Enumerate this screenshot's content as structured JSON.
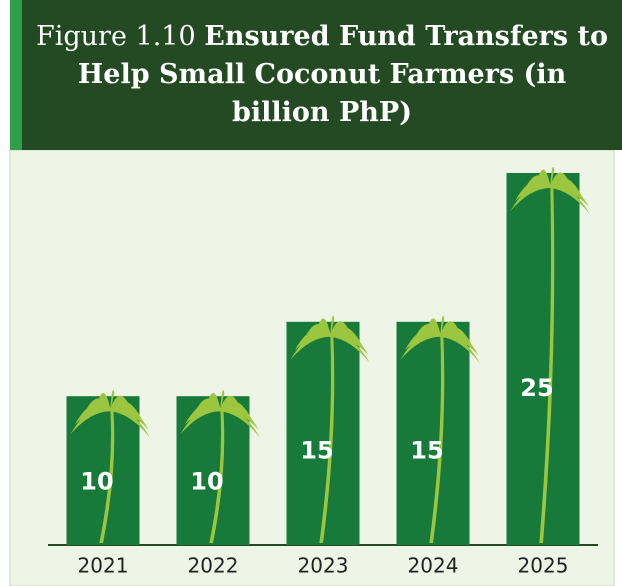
{
  "chart_data": {
    "type": "bar",
    "figure_label": "Figure 1.10",
    "title": "Ensured Fund Transfers to Help Small Coconut Farmers (in billion PhP)",
    "categories": [
      "2021",
      "2022",
      "2023",
      "2024",
      "2025"
    ],
    "values": [
      10,
      10,
      15,
      15,
      25
    ],
    "color": "#177a3a"
  }
}
